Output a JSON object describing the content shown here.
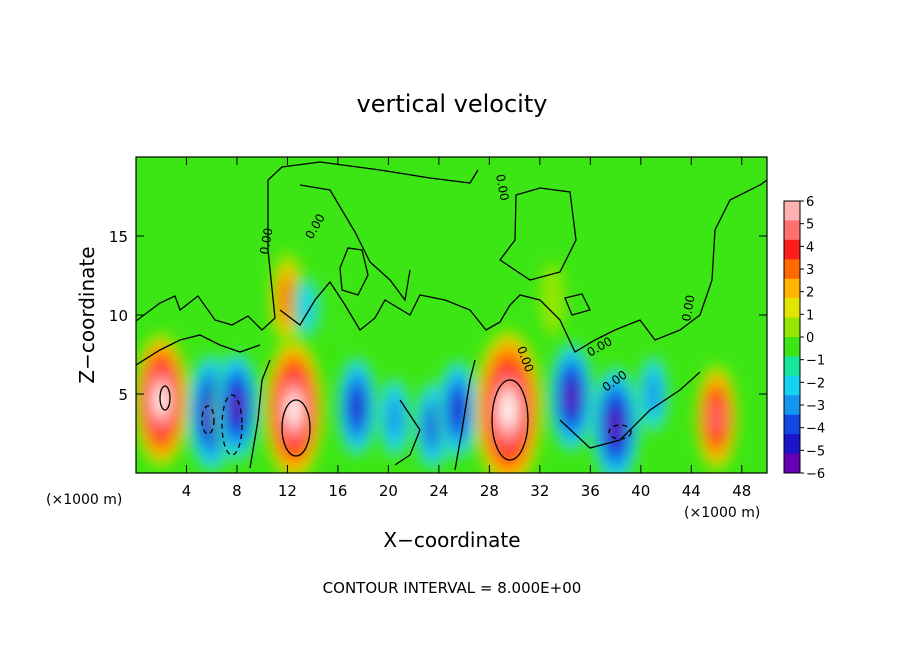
{
  "chart_data": {
    "type": "heatmap",
    "title": "vertical velocity",
    "xlabel": "X−coordinate",
    "ylabel": "Z−coordinate",
    "x_unit_label_left": "(×1000 m)",
    "x_unit_label_right": "(×1000 m)",
    "xlim": [
      0,
      50
    ],
    "ylim": [
      0,
      20
    ],
    "x_ticks": [
      4,
      8,
      12,
      16,
      20,
      24,
      28,
      32,
      36,
      40,
      44,
      48
    ],
    "y_ticks": [
      5,
      10,
      15
    ],
    "colorbar": {
      "min": -6,
      "max": 6,
      "ticks": [
        6,
        5,
        4,
        3,
        2,
        1,
        0,
        -1,
        -2,
        -3,
        -4,
        -5,
        -6
      ],
      "tick_labels": [
        "6",
        "5",
        "4",
        "3",
        "2",
        "1",
        "0",
        "−1",
        "−2",
        "−3",
        "−4",
        "−5",
        "−6"
      ],
      "colors": [
        "#ffb0b0",
        "#ff7070",
        "#ff1e1e",
        "#ff6a00",
        "#ffb400",
        "#e0e600",
        "#96e600",
        "#3ce614",
        "#14e69c",
        "#14d2f0",
        "#1496f0",
        "#1446e6",
        "#1a14c8",
        "#6400b4"
      ]
    },
    "contour_labels": [
      "0.00",
      "0.00",
      "0.00",
      "0.00",
      "0.00",
      "0.00",
      "0.00"
    ],
    "features": [
      {
        "x": 2,
        "z": 4.6,
        "w": 8
      },
      {
        "x": 6,
        "z": 3.8,
        "w": -7
      },
      {
        "x": 8,
        "z": 4.2,
        "w": -6
      },
      {
        "x": 12.5,
        "z": 4,
        "w": 9
      },
      {
        "x": 12,
        "z": 11,
        "w": 3.5
      },
      {
        "x": 17.5,
        "z": 4.2,
        "w": -5
      },
      {
        "x": 20.5,
        "z": 3.5,
        "w": -3.5
      },
      {
        "x": 23.5,
        "z": 3,
        "w": -4
      },
      {
        "x": 25.5,
        "z": 4,
        "w": -5
      },
      {
        "x": 29.5,
        "z": 4,
        "w": 11
      },
      {
        "x": 34.5,
        "z": 4.8,
        "w": -6
      },
      {
        "x": 38,
        "z": 3,
        "w": -7
      },
      {
        "x": 41,
        "z": 5,
        "w": -3
      },
      {
        "x": 46,
        "z": 3.5,
        "w": 5
      },
      {
        "x": 13.5,
        "z": 10.5,
        "w": -2
      },
      {
        "x": 16,
        "z": 10.5,
        "w": -1.5
      },
      {
        "x": 33,
        "z": 11,
        "w": 1
      }
    ]
  },
  "footer": {
    "contour_interval": "CONTOUR INTERVAL = 8.000E+00"
  }
}
